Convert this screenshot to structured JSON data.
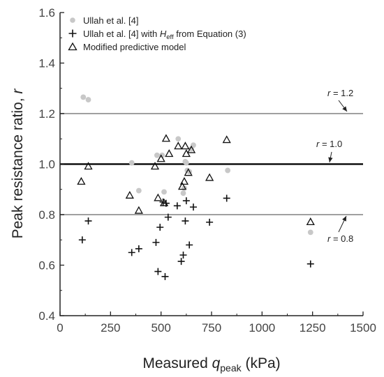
{
  "chart_data": {
    "type": "scatter",
    "xlabel": {
      "prefix": "Measured ",
      "var": "q",
      "sub": "peak",
      "suffix": " (kPa)"
    },
    "ylabel": {
      "prefix": "Peak resistance ratio, ",
      "var": "r"
    },
    "xlim": [
      0,
      1500
    ],
    "ylim": [
      0.4,
      1.6
    ],
    "xticks": [
      "0",
      "250",
      "500",
      "750",
      "1000",
      "1250",
      "1500"
    ],
    "yticks": [
      "0.4",
      "0.6",
      "0.8",
      "1.0",
      "1.2",
      "1.4",
      "1.6"
    ],
    "grid": false,
    "legend_position": "top-left",
    "series": [
      {
        "name": "Ullah et al. [4]",
        "marker": "circle",
        "color": "#c8c8c8",
        "points": [
          [
            115,
            1.265
          ],
          [
            140,
            1.255
          ],
          [
            355,
            1.005
          ],
          [
            390,
            0.895
          ],
          [
            480,
            1.035
          ],
          [
            505,
            1.035
          ],
          [
            515,
            0.89
          ],
          [
            585,
            1.1
          ],
          [
            610,
            0.885
          ],
          [
            615,
            0.905
          ],
          [
            620,
            1.01
          ],
          [
            625,
            1.005
          ],
          [
            630,
            0.975
          ],
          [
            640,
            0.97
          ],
          [
            650,
            1.06
          ],
          [
            660,
            1.075
          ],
          [
            830,
            0.975
          ],
          [
            1240,
            0.73
          ]
        ]
      },
      {
        "name": "Ullah et al. [4] with H_eff from Equation (3)",
        "legend": {
          "text1": "Ullah et al. [4] with ",
          "var": "H",
          "sub": "eff",
          "text2": " from Equation (3)"
        },
        "marker": "plus",
        "color": "#111111",
        "points": [
          [
            110,
            0.7
          ],
          [
            140,
            0.775
          ],
          [
            355,
            0.65
          ],
          [
            390,
            0.665
          ],
          [
            475,
            0.69
          ],
          [
            485,
            0.575
          ],
          [
            495,
            0.75
          ],
          [
            510,
            0.85
          ],
          [
            520,
            0.555
          ],
          [
            525,
            0.845
          ],
          [
            535,
            0.79
          ],
          [
            580,
            0.835
          ],
          [
            600,
            0.615
          ],
          [
            610,
            0.64
          ],
          [
            620,
            0.775
          ],
          [
            625,
            0.855
          ],
          [
            640,
            0.68
          ],
          [
            660,
            0.83
          ],
          [
            740,
            0.77
          ],
          [
            825,
            0.865
          ],
          [
            1240,
            0.605
          ]
        ]
      },
      {
        "name": "Modified predictive model",
        "marker": "triangle",
        "color": "#111111",
        "points": [
          [
            105,
            0.93
          ],
          [
            140,
            0.99
          ],
          [
            345,
            0.875
          ],
          [
            390,
            0.815
          ],
          [
            470,
            0.99
          ],
          [
            485,
            0.865
          ],
          [
            500,
            1.02
          ],
          [
            515,
            0.845
          ],
          [
            525,
            1.1
          ],
          [
            540,
            1.04
          ],
          [
            585,
            1.07
          ],
          [
            605,
            0.91
          ],
          [
            615,
            0.93
          ],
          [
            620,
            1.07
          ],
          [
            625,
            1.04
          ],
          [
            635,
            0.965
          ],
          [
            650,
            1.055
          ],
          [
            740,
            0.945
          ],
          [
            825,
            1.095
          ],
          [
            1240,
            0.77
          ]
        ]
      }
    ],
    "reference_lines": [
      {
        "y": 1.2,
        "label": "r = 1.2",
        "color": "#a0a0a0",
        "width": 2
      },
      {
        "y": 1.0,
        "label": "r = 1.0",
        "color": "#111111",
        "width": 2.6
      },
      {
        "y": 0.8,
        "label": "r = 0.8",
        "color": "#a0a0a0",
        "width": 2
      }
    ]
  }
}
